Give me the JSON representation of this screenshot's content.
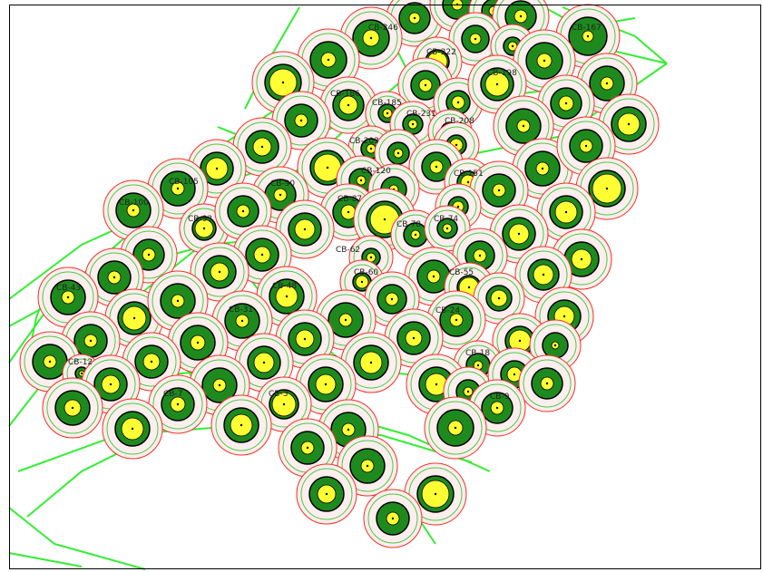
{
  "colors": {
    "background": "#ffffff",
    "network": "#33ee33",
    "buffer_outer": "#ee3322",
    "buffer_inner": "#44cc44",
    "halo": "#ffeeee",
    "crown": "#1e8a1e",
    "canopy_core": "#ffff33",
    "outline": "#000000"
  },
  "labels": [
    "CB-167",
    "CB-246",
    "CB-222",
    "CB-198",
    "CB-186",
    "CB-185",
    "CB-231",
    "CB-208",
    "CB-203",
    "CB-151",
    "CB-120",
    "CB-105",
    "CB-100",
    "CB-93",
    "CB-90",
    "CB-87",
    "CB-78",
    "CB-74",
    "CB-62",
    "CB-60",
    "CB-55",
    "CB-48",
    "CB-43",
    "CB-31",
    "CB-24",
    "CB-18",
    "CB-12",
    "CB-9",
    "CB-7",
    "CB-3"
  ]
}
